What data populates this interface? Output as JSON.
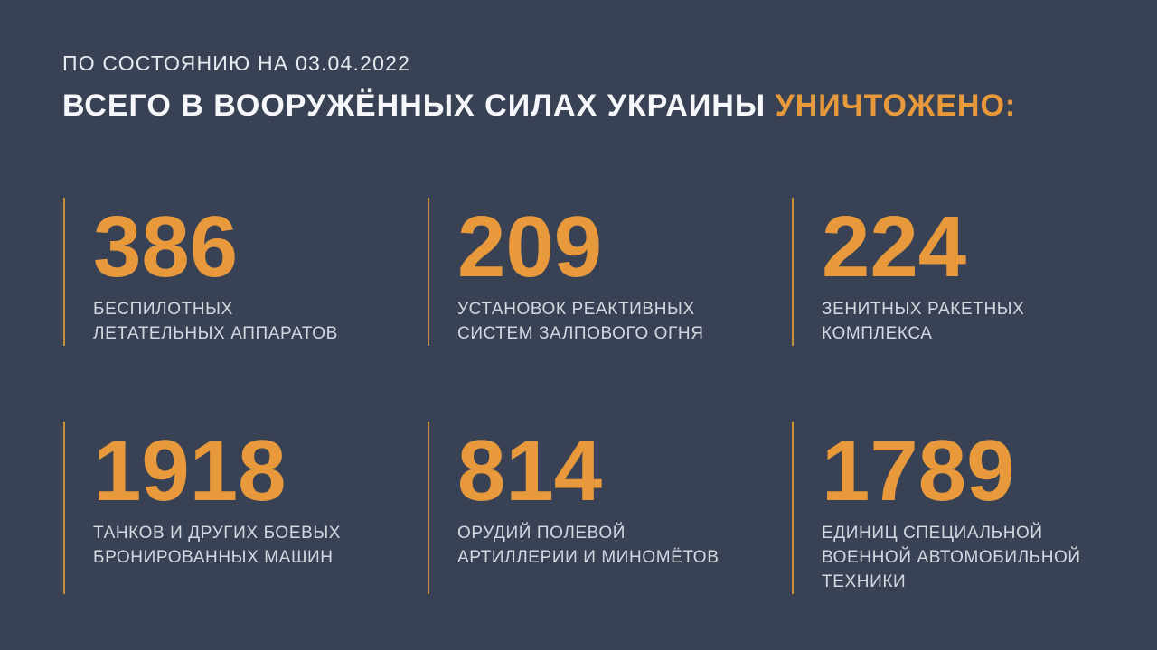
{
  "header": {
    "date_line": "ПО СОСТОЯНИЮ НА 03.04.2022",
    "title_main": "ВСЕГО В ВООРУЖЁННЫХ СИЛАХ УКРАИНЫ ",
    "title_accent": "УНИЧТОЖЕНО:"
  },
  "stats": [
    {
      "value": "386",
      "label": "БЕСПИЛОТНЫХ\nЛЕТАТЕЛЬНЫХ АППАРАТОВ"
    },
    {
      "value": "209",
      "label": "УСТАНОВОК РЕАКТИВНЫХ\nСИСТЕМ ЗАЛПОВОГО ОГНЯ"
    },
    {
      "value": "224",
      "label": "ЗЕНИТНЫХ РАКЕТНЫХ\nКОМПЛЕКСА"
    },
    {
      "value": "1918",
      "label": "ТАНКОВ И ДРУГИХ БОЕВЫХ\nБРОНИРОВАННЫХ МАШИН"
    },
    {
      "value": "814",
      "label": "ОРУДИЙ ПОЛЕВОЙ\nАРТИЛЛЕРИИ И МИНОМЁТОВ"
    },
    {
      "value": "1789",
      "label": "ЕДИНИЦ СПЕЦИАЛЬНОЙ\nВОЕННОЙ АВТОМОБИЛЬНОЙ\nТЕХНИКИ"
    }
  ],
  "colors": {
    "background": "#394254",
    "accent_orange": "#E8993B",
    "divider_gold": "#C7913C",
    "title_white": "#F5F7FA",
    "label_gray": "#D3D8DF"
  },
  "chart_data": {
    "type": "table",
    "title": "ВСЕГО В ВООРУЖЁННЫХ СИЛАХ УКРАИНЫ УНИЧТОЖЕНО:",
    "subtitle": "ПО СОСТОЯНИЮ НА 03.04.2022",
    "categories": [
      "БЕСПИЛОТНЫХ ЛЕТАТЕЛЬНЫХ АППАРАТОВ",
      "УСТАНОВОК РЕАКТИВНЫХ СИСТЕМ ЗАЛПОВОГО ОГНЯ",
      "ЗЕНИТНЫХ РАКЕТНЫХ КОМПЛЕКСА",
      "ТАНКОВ И ДРУГИХ БОЕВЫХ БРОНИРОВАННЫХ МАШИН",
      "ОРУДИЙ ПОЛЕВОЙ АРТИЛЛЕРИИ И МИНОМЁТОВ",
      "ЕДИНИЦ СПЕЦИАЛЬНОЙ ВОЕННОЙ АВТОМОБИЛЬНОЙ ТЕХНИКИ"
    ],
    "values": [
      386,
      209,
      224,
      1918,
      814,
      1789
    ],
    "layout": "3x2 grid of big-number stat blocks, gold divider line left of each block"
  }
}
